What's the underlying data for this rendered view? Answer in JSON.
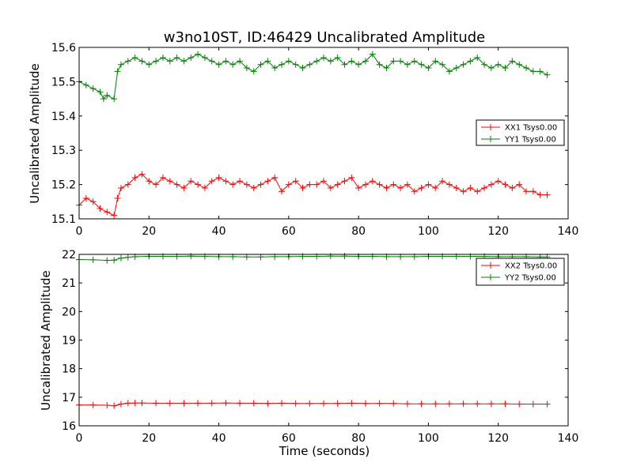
{
  "chart_data": [
    {
      "type": "line",
      "title": "w3no10ST, ID:46429 Uncalibrated Amplitude",
      "xlabel": "",
      "ylabel": "Uncalibrated Amplitude",
      "xlim": [
        0,
        140
      ],
      "ylim": [
        15.1,
        15.6
      ],
      "xticks": [
        "0",
        "20",
        "40",
        "60",
        "80",
        "100",
        "120",
        "140"
      ],
      "yticks": [
        "15.1",
        "15.2",
        "15.3",
        "15.4",
        "15.5",
        "15.6"
      ],
      "marker": "+",
      "legend": "right",
      "series": [
        {
          "name": "XX1 Tsys0.00",
          "color": "#ff0000",
          "points": [
            [
              0,
              15.14
            ],
            [
              2,
              15.16
            ],
            [
              4,
              15.15
            ],
            [
              6,
              15.13
            ],
            [
              8,
              15.12
            ],
            [
              10,
              15.11
            ],
            [
              11,
              15.16
            ],
            [
              12,
              15.19
            ],
            [
              14,
              15.2
            ],
            [
              16,
              15.22
            ],
            [
              18,
              15.23
            ],
            [
              20,
              15.21
            ],
            [
              22,
              15.2
            ],
            [
              24,
              15.22
            ],
            [
              26,
              15.21
            ],
            [
              28,
              15.2
            ],
            [
              30,
              15.19
            ],
            [
              32,
              15.21
            ],
            [
              34,
              15.2
            ],
            [
              36,
              15.19
            ],
            [
              38,
              15.21
            ],
            [
              40,
              15.22
            ],
            [
              42,
              15.21
            ],
            [
              44,
              15.2
            ],
            [
              46,
              15.21
            ],
            [
              48,
              15.2
            ],
            [
              50,
              15.19
            ],
            [
              52,
              15.2
            ],
            [
              54,
              15.21
            ],
            [
              56,
              15.22
            ],
            [
              58,
              15.18
            ],
            [
              60,
              15.2
            ],
            [
              62,
              15.21
            ],
            [
              64,
              15.19
            ],
            [
              66,
              15.2
            ],
            [
              68,
              15.2
            ],
            [
              70,
              15.21
            ],
            [
              72,
              15.19
            ],
            [
              74,
              15.2
            ],
            [
              76,
              15.21
            ],
            [
              78,
              15.22
            ],
            [
              80,
              15.19
            ],
            [
              82,
              15.2
            ],
            [
              84,
              15.21
            ],
            [
              86,
              15.2
            ],
            [
              88,
              15.19
            ],
            [
              90,
              15.2
            ],
            [
              92,
              15.19
            ],
            [
              94,
              15.2
            ],
            [
              96,
              15.18
            ],
            [
              98,
              15.19
            ],
            [
              100,
              15.2
            ],
            [
              102,
              15.19
            ],
            [
              104,
              15.21
            ],
            [
              106,
              15.2
            ],
            [
              108,
              15.19
            ],
            [
              110,
              15.18
            ],
            [
              112,
              15.19
            ],
            [
              114,
              15.18
            ],
            [
              116,
              15.19
            ],
            [
              118,
              15.2
            ],
            [
              120,
              15.21
            ],
            [
              122,
              15.2
            ],
            [
              124,
              15.19
            ],
            [
              126,
              15.2
            ],
            [
              128,
              15.18
            ],
            [
              130,
              15.18
            ],
            [
              132,
              15.17
            ],
            [
              134,
              15.17
            ]
          ]
        },
        {
          "name": "YY1 Tsys0.00",
          "color": "#008000",
          "points": [
            [
              0,
              15.5
            ],
            [
              2,
              15.49
            ],
            [
              4,
              15.48
            ],
            [
              6,
              15.47
            ],
            [
              7,
              15.45
            ],
            [
              8,
              15.46
            ],
            [
              10,
              15.45
            ],
            [
              11,
              15.53
            ],
            [
              12,
              15.55
            ],
            [
              14,
              15.56
            ],
            [
              16,
              15.57
            ],
            [
              18,
              15.56
            ],
            [
              20,
              15.55
            ],
            [
              22,
              15.56
            ],
            [
              24,
              15.57
            ],
            [
              26,
              15.56
            ],
            [
              28,
              15.57
            ],
            [
              30,
              15.56
            ],
            [
              32,
              15.57
            ],
            [
              34,
              15.58
            ],
            [
              36,
              15.57
            ],
            [
              38,
              15.56
            ],
            [
              40,
              15.55
            ],
            [
              42,
              15.56
            ],
            [
              44,
              15.55
            ],
            [
              46,
              15.56
            ],
            [
              48,
              15.54
            ],
            [
              50,
              15.53
            ],
            [
              52,
              15.55
            ],
            [
              54,
              15.56
            ],
            [
              56,
              15.54
            ],
            [
              58,
              15.55
            ],
            [
              60,
              15.56
            ],
            [
              62,
              15.55
            ],
            [
              64,
              15.54
            ],
            [
              66,
              15.55
            ],
            [
              68,
              15.56
            ],
            [
              70,
              15.57
            ],
            [
              72,
              15.56
            ],
            [
              74,
              15.57
            ],
            [
              76,
              15.55
            ],
            [
              78,
              15.56
            ],
            [
              80,
              15.55
            ],
            [
              82,
              15.56
            ],
            [
              84,
              15.58
            ],
            [
              86,
              15.55
            ],
            [
              88,
              15.54
            ],
            [
              90,
              15.56
            ],
            [
              92,
              15.56
            ],
            [
              94,
              15.55
            ],
            [
              96,
              15.56
            ],
            [
              98,
              15.55
            ],
            [
              100,
              15.54
            ],
            [
              102,
              15.56
            ],
            [
              104,
              15.55
            ],
            [
              106,
              15.53
            ],
            [
              108,
              15.54
            ],
            [
              110,
              15.55
            ],
            [
              112,
              15.56
            ],
            [
              114,
              15.57
            ],
            [
              116,
              15.55
            ],
            [
              118,
              15.54
            ],
            [
              120,
              15.55
            ],
            [
              122,
              15.54
            ],
            [
              124,
              15.56
            ],
            [
              126,
              15.55
            ],
            [
              128,
              15.54
            ],
            [
              130,
              15.53
            ],
            [
              132,
              15.53
            ],
            [
              134,
              15.52
            ]
          ]
        }
      ]
    },
    {
      "type": "line",
      "title": "",
      "xlabel": "Time (seconds)",
      "ylabel": "Uncalibrated Amplitude",
      "xlim": [
        0,
        140
      ],
      "ylim": [
        16,
        22
      ],
      "xticks": [
        "0",
        "20",
        "40",
        "60",
        "80",
        "100",
        "120",
        "140"
      ],
      "yticks": [
        "16",
        "17",
        "18",
        "19",
        "20",
        "21",
        "22"
      ],
      "marker": "+",
      "legend": "top-right",
      "series": [
        {
          "name": "XX2 Tsys0.00",
          "color": "#ff0000",
          "points": [
            [
              0,
              16.73
            ],
            [
              4,
              16.73
            ],
            [
              8,
              16.72
            ],
            [
              10,
              16.7
            ],
            [
              12,
              16.76
            ],
            [
              14,
              16.79
            ],
            [
              16,
              16.8
            ],
            [
              18,
              16.8
            ],
            [
              22,
              16.79
            ],
            [
              26,
              16.79
            ],
            [
              30,
              16.79
            ],
            [
              34,
              16.79
            ],
            [
              38,
              16.79
            ],
            [
              42,
              16.8
            ],
            [
              46,
              16.79
            ],
            [
              50,
              16.79
            ],
            [
              54,
              16.78
            ],
            [
              58,
              16.79
            ],
            [
              62,
              16.78
            ],
            [
              66,
              16.78
            ],
            [
              70,
              16.78
            ],
            [
              74,
              16.78
            ],
            [
              78,
              16.79
            ],
            [
              82,
              16.78
            ],
            [
              86,
              16.78
            ],
            [
              90,
              16.78
            ],
            [
              94,
              16.77
            ],
            [
              98,
              16.77
            ],
            [
              102,
              16.77
            ],
            [
              106,
              16.77
            ],
            [
              110,
              16.77
            ],
            [
              114,
              16.77
            ],
            [
              118,
              16.77
            ],
            [
              122,
              16.77
            ],
            [
              126,
              16.76
            ],
            [
              130,
              16.76
            ],
            [
              134,
              16.76
            ]
          ]
        },
        {
          "name": "YY2 Tsys0.00",
          "color": "#008000",
          "points": [
            [
              0,
              21.82
            ],
            [
              4,
              21.81
            ],
            [
              8,
              21.79
            ],
            [
              10,
              21.8
            ],
            [
              12,
              21.87
            ],
            [
              14,
              21.9
            ],
            [
              16,
              21.92
            ],
            [
              20,
              21.93
            ],
            [
              24,
              21.93
            ],
            [
              28,
              21.93
            ],
            [
              32,
              21.94
            ],
            [
              36,
              21.93
            ],
            [
              40,
              21.92
            ],
            [
              44,
              21.92
            ],
            [
              48,
              21.91
            ],
            [
              52,
              21.91
            ],
            [
              56,
              21.92
            ],
            [
              60,
              21.92
            ],
            [
              64,
              21.93
            ],
            [
              68,
              21.93
            ],
            [
              72,
              21.94
            ],
            [
              76,
              21.94
            ],
            [
              80,
              21.93
            ],
            [
              84,
              21.93
            ],
            [
              88,
              21.92
            ],
            [
              92,
              21.92
            ],
            [
              96,
              21.92
            ],
            [
              100,
              21.93
            ],
            [
              104,
              21.93
            ],
            [
              108,
              21.93
            ],
            [
              112,
              21.93
            ],
            [
              116,
              21.93
            ],
            [
              120,
              21.92
            ],
            [
              124,
              21.92
            ],
            [
              128,
              21.92
            ],
            [
              132,
              21.91
            ],
            [
              134,
              21.91
            ]
          ]
        }
      ]
    }
  ]
}
